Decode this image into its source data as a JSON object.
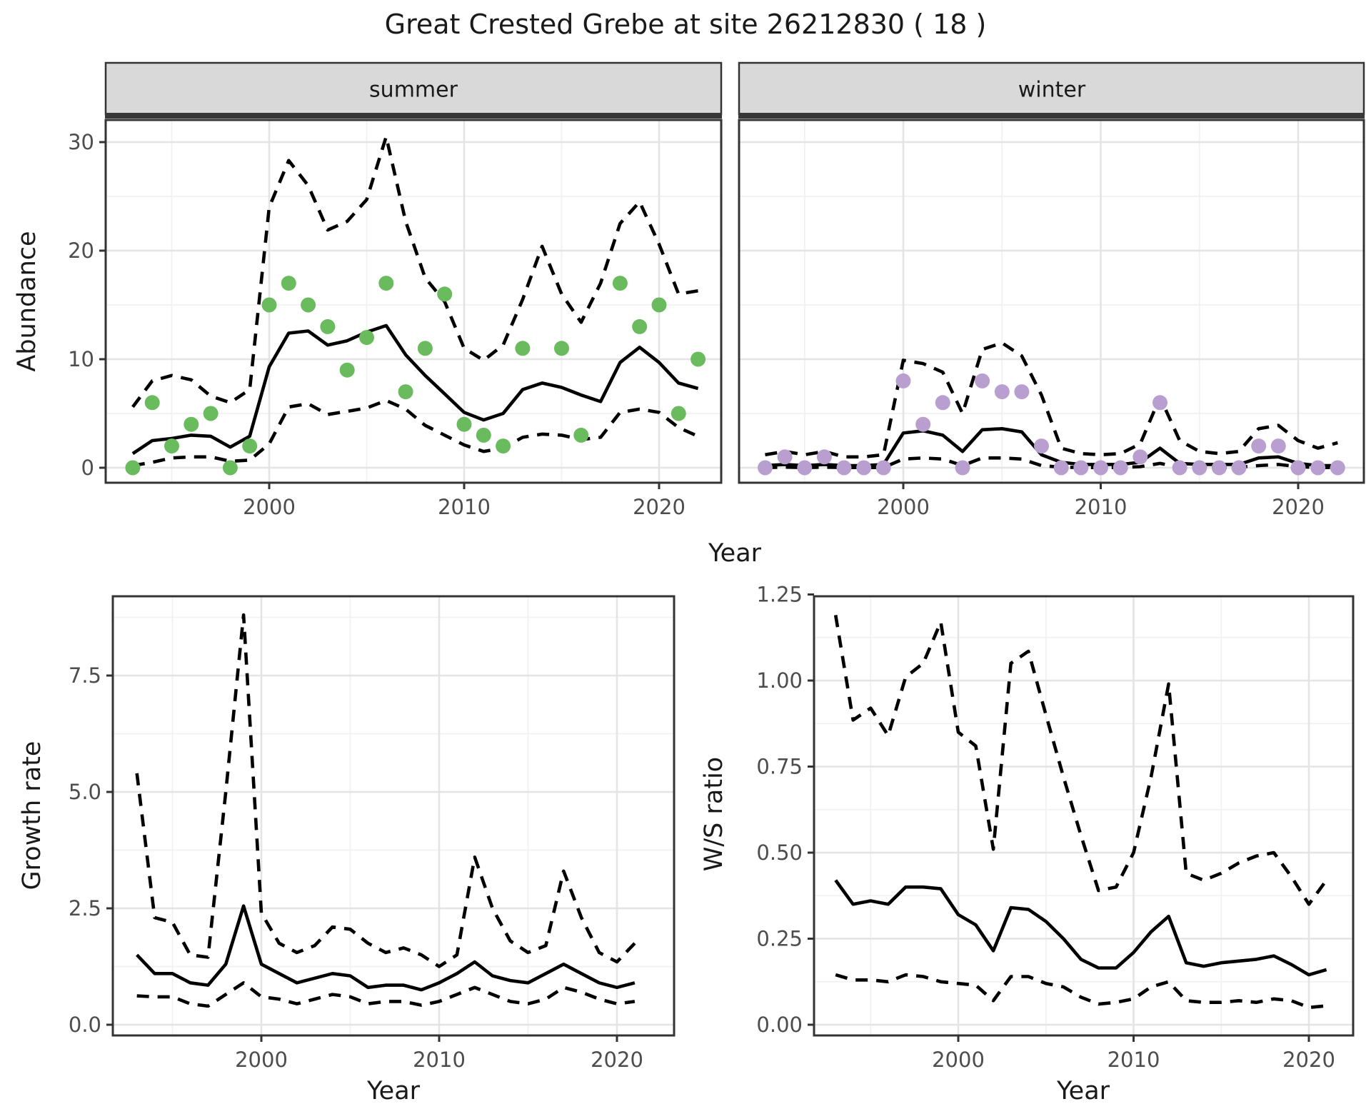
{
  "title": "Great Crested Grebe at site 26212830 ( 18 )",
  "axis": {
    "year_label": "Year",
    "abundance_label": "Abundance",
    "growth_label": "Growth rate",
    "ws_label": "W/S ratio"
  },
  "colors": {
    "observed_summer": "#6abb5e",
    "observed_winter": "#b99fd0",
    "fit_line": "#000000",
    "ci_line": "#000000",
    "grid_major": "#e4e4e4",
    "grid_minor": "#f1f1f1",
    "strip_bg": "#d9d9d9",
    "panel_border": "#333333",
    "tick_text": "#4d4d4d",
    "title_text": "#1a1a1a"
  },
  "chart_data": [
    {
      "type": "line",
      "panel": "abundance-summer",
      "facet_label": "summer",
      "xlabel": "Year",
      "ylabel": "Abundance",
      "x_ticks": [
        2000,
        2010,
        2020
      ],
      "x_tick_labels": [
        "2000",
        "2010",
        "2020"
      ],
      "x_minor": [
        1995,
        2005,
        2015
      ],
      "y_ticks": [
        0,
        10,
        20,
        30
      ],
      "y_tick_labels": [
        "0",
        "10",
        "20",
        "30"
      ],
      "y_minor": [
        5,
        15,
        25
      ],
      "xlim": [
        1991.6,
        2023.5
      ],
      "ylim": [
        -1.4,
        32
      ],
      "grid": true,
      "legend_position": "none",
      "x": [
        1993,
        1994,
        1995,
        1996,
        1997,
        1998,
        1999,
        2000,
        2001,
        2002,
        2003,
        2004,
        2005,
        2006,
        2007,
        2008,
        2009,
        2010,
        2011,
        2012,
        2013,
        2014,
        2015,
        2016,
        2017,
        2018,
        2019,
        2020,
        2021,
        2022
      ],
      "series": [
        {
          "name": "model fit",
          "style": "solid",
          "values": [
            1.3,
            2.5,
            2.7,
            3.0,
            2.9,
            1.9,
            2.9,
            9.3,
            12.4,
            12.6,
            11.3,
            11.7,
            12.5,
            13.1,
            10.4,
            8.5,
            6.8,
            5.1,
            4.4,
            5.0,
            7.2,
            7.8,
            7.4,
            6.7,
            6.1,
            9.7,
            11.1,
            9.7,
            7.8,
            7.3
          ]
        },
        {
          "name": "upper CI",
          "style": "dashed",
          "values": [
            5.6,
            8.0,
            8.5,
            8.1,
            6.6,
            6.0,
            7.2,
            24.0,
            28.3,
            26.0,
            21.9,
            22.7,
            24.7,
            30.5,
            22.7,
            17.5,
            15.3,
            11.0,
            9.9,
            11.3,
            15.5,
            20.4,
            16.0,
            13.4,
            17.0,
            22.5,
            24.5,
            20.6,
            16.0,
            16.3
          ]
        },
        {
          "name": "lower CI",
          "style": "dashed",
          "values": [
            0.2,
            0.5,
            0.9,
            1.0,
            1.0,
            0.6,
            0.7,
            2.2,
            5.6,
            5.9,
            4.9,
            5.2,
            5.5,
            6.2,
            5.4,
            3.9,
            3.0,
            2.1,
            1.5,
            1.8,
            2.8,
            3.1,
            3.0,
            2.6,
            2.8,
            5.1,
            5.4,
            5.1,
            3.7,
            2.9
          ]
        }
      ],
      "points": {
        "name": "observed counts",
        "color_key": "observed_summer",
        "x": [
          1993,
          1994,
          1995,
          1996,
          1997,
          1998,
          1999,
          2000,
          2001,
          2002,
          2003,
          2004,
          2005,
          2006,
          2007,
          2008,
          2009,
          2010,
          2011,
          2012,
          2013,
          2015,
          2016,
          2018,
          2019,
          2020,
          2021,
          2022
        ],
        "y": [
          0,
          6,
          2,
          4,
          5,
          0,
          2,
          15,
          17,
          15,
          13,
          9,
          12,
          17,
          7,
          11,
          16,
          4,
          3,
          2,
          11,
          11,
          3,
          17,
          13,
          15,
          5,
          10
        ]
      }
    },
    {
      "type": "line",
      "panel": "abundance-winter",
      "facet_label": "winter",
      "xlabel": "Year",
      "ylabel": "Abundance",
      "x_ticks": [
        2000,
        2010,
        2020
      ],
      "x_tick_labels": [
        "2000",
        "2010",
        "2020"
      ],
      "x_minor": [
        1995,
        2005,
        2015
      ],
      "y_ticks": [
        0,
        10,
        20,
        30
      ],
      "y_tick_labels": [
        "0",
        "10",
        "20",
        "30"
      ],
      "y_minor": [
        5,
        15,
        25
      ],
      "xlim": [
        1991.6,
        2023.5
      ],
      "ylim": [
        -1.4,
        32
      ],
      "grid": true,
      "legend_position": "none",
      "x": [
        1993,
        1994,
        1995,
        1996,
        1997,
        1998,
        1999,
        2000,
        2001,
        2002,
        2003,
        2004,
        2005,
        2006,
        2007,
        2008,
        2009,
        2010,
        2011,
        2012,
        2013,
        2014,
        2015,
        2016,
        2017,
        2018,
        2019,
        2020,
        2021,
        2022
      ],
      "series": [
        {
          "name": "model fit",
          "style": "solid",
          "values": [
            0.2,
            0.3,
            0.2,
            0.3,
            0.2,
            0.2,
            0.3,
            3.2,
            3.4,
            3.0,
            1.5,
            3.5,
            3.6,
            3.3,
            1.2,
            0.5,
            0.3,
            0.3,
            0.3,
            0.5,
            1.8,
            0.4,
            0.3,
            0.3,
            0.3,
            0.9,
            1.0,
            0.4,
            0.2,
            0.2
          ]
        },
        {
          "name": "upper CI",
          "style": "dashed",
          "values": [
            1.2,
            1.5,
            1.2,
            1.5,
            1.0,
            1.0,
            1.2,
            9.9,
            9.6,
            8.8,
            5.0,
            10.9,
            11.5,
            10.3,
            6.7,
            1.8,
            1.3,
            1.2,
            1.3,
            2.2,
            6.5,
            2.5,
            1.5,
            1.3,
            1.5,
            3.6,
            3.9,
            2.5,
            1.8,
            2.3
          ]
        },
        {
          "name": "lower CI",
          "style": "dashed",
          "values": [
            0.02,
            0.05,
            0.02,
            0.05,
            0.02,
            0.02,
            0.02,
            0.8,
            0.9,
            0.8,
            0.2,
            0.9,
            0.9,
            0.8,
            0.2,
            0.05,
            0.02,
            0.02,
            0.02,
            0.1,
            0.4,
            0.05,
            0.02,
            0.02,
            0.05,
            0.2,
            0.3,
            0.1,
            0.02,
            0.02
          ]
        }
      ],
      "points": {
        "name": "observed counts",
        "color_key": "observed_winter",
        "x": [
          1993,
          1994,
          1995,
          1996,
          1997,
          1998,
          1999,
          2000,
          2001,
          2002,
          2003,
          2004,
          2005,
          2006,
          2007,
          2008,
          2009,
          2010,
          2011,
          2012,
          2013,
          2014,
          2015,
          2016,
          2017,
          2018,
          2019,
          2020,
          2021,
          2022
        ],
        "y": [
          0,
          1,
          0,
          1,
          0,
          0,
          0,
          8,
          4,
          6,
          0,
          8,
          7,
          7,
          2,
          0,
          0,
          0,
          0,
          1,
          6,
          0,
          0,
          0,
          0,
          2,
          2,
          0,
          0,
          0
        ]
      }
    },
    {
      "type": "line",
      "panel": "growth",
      "facet_label": null,
      "xlabel": "Year",
      "ylabel": "Growth rate",
      "x_ticks": [
        2000,
        2010,
        2020
      ],
      "x_tick_labels": [
        "2000",
        "2010",
        "2020"
      ],
      "x_minor": [
        1995,
        2005,
        2015
      ],
      "y_ticks": [
        0,
        2.5,
        5,
        7.5
      ],
      "y_tick_labels": [
        "0.0",
        "2.5",
        "5.0",
        "7.5"
      ],
      "y_minor": [
        1.25,
        3.75,
        6.25,
        8.75
      ],
      "xlim": [
        1991.6,
        2023.2
      ],
      "ylim": [
        -0.2,
        9.2
      ],
      "grid": true,
      "legend_position": "none",
      "x": [
        1993,
        1994,
        1995,
        1996,
        1997,
        1998,
        1999,
        2000,
        2001,
        2002,
        2003,
        2004,
        2005,
        2006,
        2007,
        2008,
        2009,
        2010,
        2011,
        2012,
        2013,
        2014,
        2015,
        2016,
        2017,
        2018,
        2019,
        2020,
        2021
      ],
      "series": [
        {
          "name": "growth rate",
          "style": "solid",
          "values": [
            1.5,
            1.1,
            1.1,
            0.9,
            0.85,
            1.3,
            2.55,
            1.3,
            1.1,
            0.9,
            1.0,
            1.1,
            1.05,
            0.8,
            0.85,
            0.85,
            0.75,
            0.9,
            1.1,
            1.35,
            1.05,
            0.95,
            0.9,
            1.1,
            1.3,
            1.1,
            0.9,
            0.8,
            0.9
          ]
        },
        {
          "name": "upper CI",
          "style": "dashed",
          "values": [
            5.4,
            2.3,
            2.2,
            1.5,
            1.45,
            5.0,
            8.8,
            2.4,
            1.75,
            1.55,
            1.7,
            2.1,
            2.05,
            1.75,
            1.55,
            1.65,
            1.5,
            1.25,
            1.5,
            3.6,
            2.5,
            1.8,
            1.55,
            1.7,
            3.3,
            2.3,
            1.55,
            1.35,
            1.75
          ]
        },
        {
          "name": "lower CI",
          "style": "dashed",
          "values": [
            0.62,
            0.6,
            0.6,
            0.45,
            0.4,
            0.65,
            0.9,
            0.6,
            0.55,
            0.45,
            0.55,
            0.65,
            0.6,
            0.45,
            0.5,
            0.5,
            0.42,
            0.5,
            0.65,
            0.8,
            0.65,
            0.5,
            0.45,
            0.55,
            0.8,
            0.7,
            0.55,
            0.45,
            0.5
          ]
        }
      ],
      "points": null
    },
    {
      "type": "line",
      "panel": "ws",
      "facet_label": null,
      "xlabel": "Year",
      "ylabel": "W/S ratio",
      "x_ticks": [
        2000,
        2010,
        2020
      ],
      "x_tick_labels": [
        "2000",
        "2010",
        "2020"
      ],
      "x_minor": [
        1995,
        2005,
        2015
      ],
      "y_ticks": [
        0,
        0.25,
        0.5,
        0.75,
        1,
        1.25
      ],
      "y_tick_labels": [
        "0.00",
        "0.25",
        "0.50",
        "0.75",
        "1.00",
        "1.25"
      ],
      "y_minor": [
        0.125,
        0.375,
        0.625,
        0.875,
        1.125
      ],
      "xlim": [
        1991.8,
        2022.5
      ],
      "ylim": [
        0,
        1.25
      ],
      "grid": true,
      "legend_position": "none",
      "x": [
        1993,
        1994,
        1995,
        1996,
        1997,
        1998,
        1999,
        2000,
        2001,
        2002,
        2003,
        2004,
        2005,
        2006,
        2007,
        2008,
        2009,
        2010,
        2011,
        2012,
        2013,
        2014,
        2015,
        2016,
        2017,
        2018,
        2019,
        2020,
        2021
      ],
      "series": [
        {
          "name": "W/S ratio",
          "style": "solid",
          "values": [
            0.42,
            0.35,
            0.36,
            0.35,
            0.4,
            0.4,
            0.395,
            0.32,
            0.29,
            0.215,
            0.34,
            0.335,
            0.3,
            0.25,
            0.19,
            0.165,
            0.165,
            0.21,
            0.27,
            0.315,
            0.18,
            0.17,
            0.18,
            0.185,
            0.19,
            0.2,
            0.175,
            0.145,
            0.16
          ]
        },
        {
          "name": "upper CI",
          "style": "dashed",
          "values": [
            1.19,
            0.885,
            0.92,
            0.84,
            1.01,
            1.05,
            1.17,
            0.85,
            0.81,
            0.51,
            1.05,
            1.085,
            0.9,
            0.72,
            0.55,
            0.39,
            0.4,
            0.5,
            0.72,
            0.99,
            0.44,
            0.42,
            0.44,
            0.47,
            0.49,
            0.5,
            0.43,
            0.35,
            0.42
          ]
        },
        {
          "name": "lower CI",
          "style": "dashed",
          "values": [
            0.145,
            0.13,
            0.13,
            0.125,
            0.145,
            0.14,
            0.125,
            0.12,
            0.115,
            0.07,
            0.14,
            0.14,
            0.12,
            0.11,
            0.08,
            0.06,
            0.065,
            0.075,
            0.11,
            0.125,
            0.07,
            0.065,
            0.065,
            0.07,
            0.065,
            0.075,
            0.07,
            0.05,
            0.055
          ]
        }
      ],
      "points": null
    }
  ]
}
